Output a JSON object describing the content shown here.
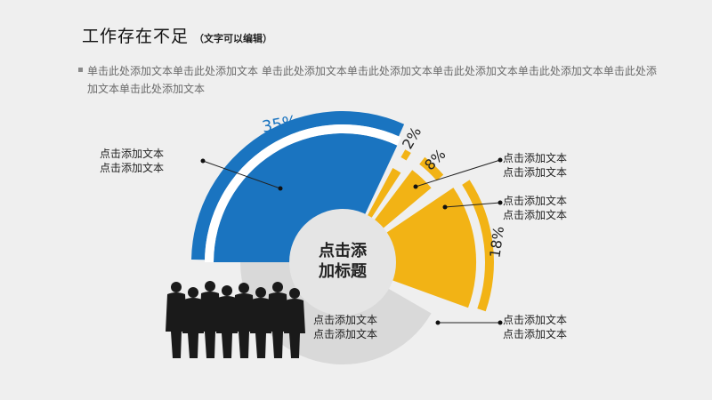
{
  "title": "工作存在不足",
  "subtitle": "（文字可以编辑）",
  "body_text": "单击此处添加文本单击此处添加文本 单击此处添加文本单击此处添加文本单击此处添加文本单击此处添加文本单击此处添加文本单击此处添加文本",
  "center_title_line1": "点击添",
  "center_title_line2": "加标题",
  "labels": {
    "s35_line1": "点击添加文本",
    "s35_line2": "点击添加文本",
    "s2_line1": "点击添加文本",
    "s2_line2": "点击添加文本",
    "s8_line1": "点击添加文本",
    "s8_line2": "点击添加文本",
    "s18_line1": "点击添加文本",
    "s18_line2": "点击添加文本",
    "inner_line1": "点击添加文本",
    "inner_line2": "点击添加文本"
  },
  "colors": {
    "blue": "#1a74c0",
    "yellow": "#f2b315",
    "gray": "#d9d9d9",
    "center": "#e5e5e5"
  },
  "chart_data": {
    "type": "pie",
    "series": [
      {
        "label": "35%",
        "value": 35,
        "color": "#1a74c0"
      },
      {
        "label": "2%",
        "value": 2,
        "color": "#f2b315"
      },
      {
        "label": "8%",
        "value": 8,
        "color": "#f2b315"
      },
      {
        "label": "18%",
        "value": 18,
        "color": "#f2b315"
      }
    ]
  }
}
